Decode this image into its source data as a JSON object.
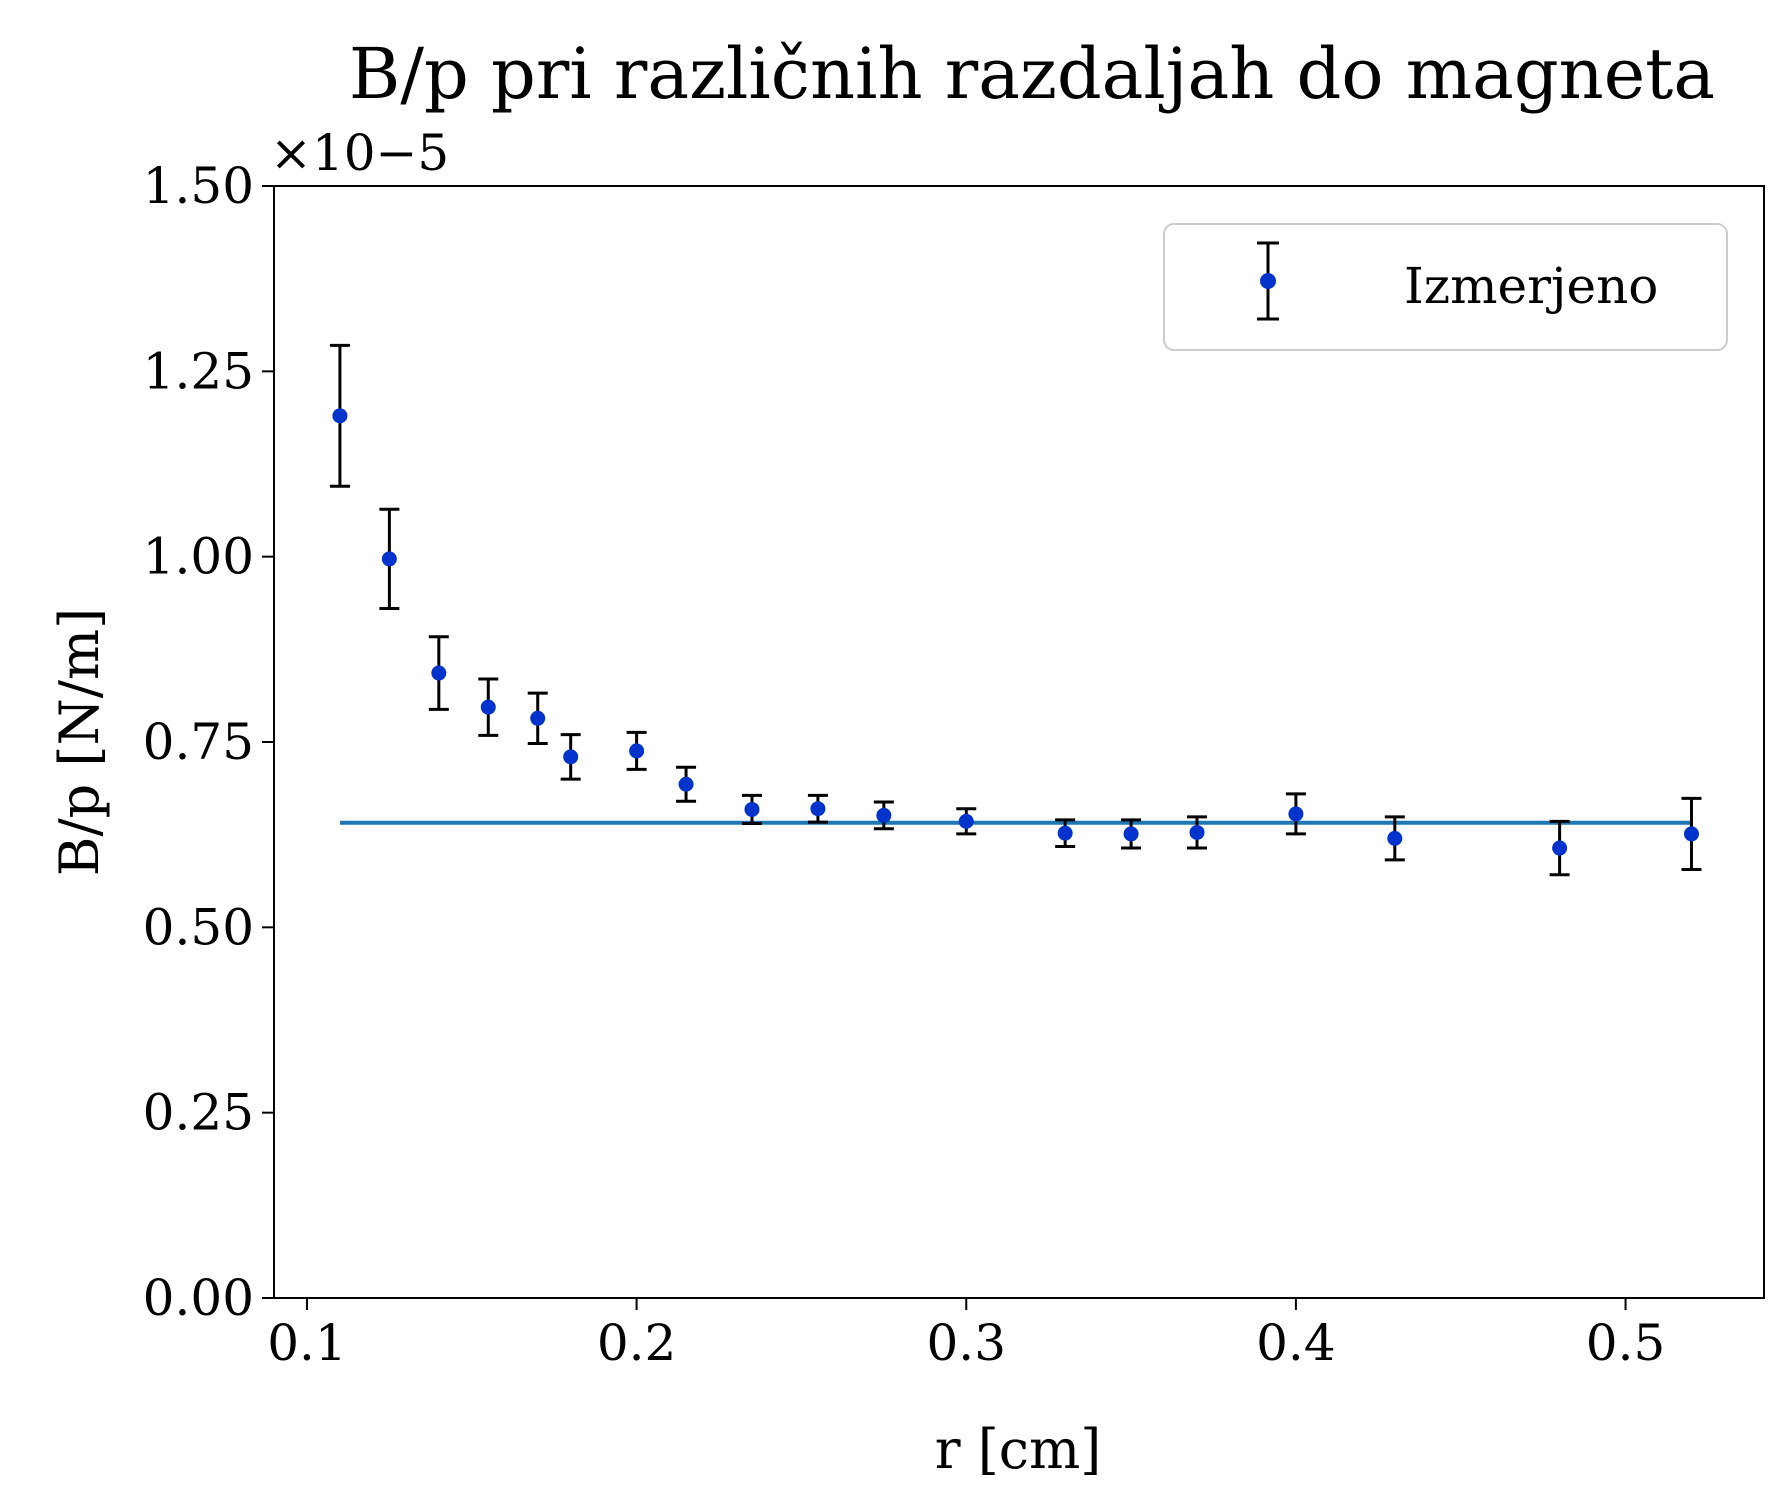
{
  "chart_data": {
    "type": "scatter",
    "title": "B/p pri različnih razdaljah do magneta",
    "xlabel": "r [cm]",
    "ylabel": "B/p [N/m]",
    "y_offset_label": "×10−5",
    "xlim": [
      0.09,
      0.542
    ],
    "ylim": [
      0.0,
      1.5
    ],
    "y_scale_factor": 1e-05,
    "xticks": [
      0.1,
      0.2,
      0.3,
      0.4,
      0.5
    ],
    "xtick_labels": [
      "0.1",
      "0.2",
      "0.3",
      "0.4",
      "0.5"
    ],
    "yticks": [
      0.0,
      0.25,
      0.5,
      0.75,
      1.0,
      1.25,
      1.5
    ],
    "ytick_labels": [
      "0.00",
      "0.25",
      "0.50",
      "0.75",
      "1.00",
      "1.25",
      "1.50"
    ],
    "grid": false,
    "legend_position": "top-right",
    "series": [
      {
        "name": "Izmerjeno",
        "kind": "errorbar",
        "marker_color": "#0033cc",
        "errorbar_color": "#000000",
        "x": [
          0.11,
          0.125,
          0.14,
          0.155,
          0.17,
          0.18,
          0.2,
          0.215,
          0.235,
          0.255,
          0.275,
          0.3,
          0.33,
          0.35,
          0.37,
          0.4,
          0.43,
          0.48,
          0.52
        ],
        "y": [
          1.19,
          0.997,
          0.843,
          0.797,
          0.782,
          0.73,
          0.738,
          0.693,
          0.659,
          0.66,
          0.651,
          0.643,
          0.627,
          0.626,
          0.628,
          0.653,
          0.62,
          0.607,
          0.626
        ],
        "err": [
          0.095,
          0.067,
          0.049,
          0.038,
          0.034,
          0.03,
          0.025,
          0.023,
          0.019,
          0.018,
          0.018,
          0.017,
          0.018,
          0.019,
          0.021,
          0.027,
          0.029,
          0.036,
          0.048
        ]
      },
      {
        "kind": "line",
        "color": "#1f77b4",
        "x": [
          0.11,
          0.52
        ],
        "y": [
          0.641,
          0.641
        ]
      }
    ]
  }
}
